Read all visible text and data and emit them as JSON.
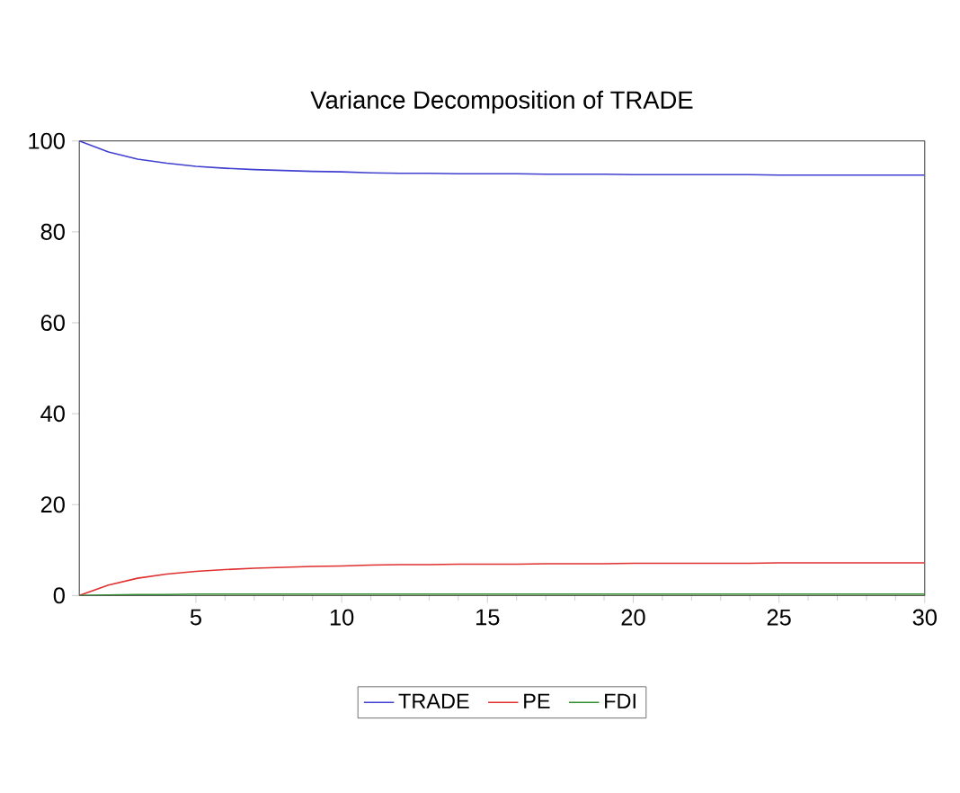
{
  "chart_data": {
    "type": "line",
    "title": "Variance Decomposition of TRADE",
    "x": [
      1,
      2,
      3,
      4,
      5,
      6,
      7,
      8,
      9,
      10,
      11,
      12,
      13,
      14,
      15,
      16,
      17,
      18,
      19,
      20,
      21,
      22,
      23,
      24,
      25,
      26,
      27,
      28,
      29,
      30
    ],
    "series": [
      {
        "name": "TRADE",
        "color": "#4040d0",
        "values": [
          100,
          97.6,
          96.0,
          95.1,
          94.4,
          94.0,
          93.7,
          93.5,
          93.3,
          93.2,
          93.0,
          92.9,
          92.9,
          92.8,
          92.8,
          92.8,
          92.7,
          92.7,
          92.7,
          92.6,
          92.6,
          92.6,
          92.6,
          92.6,
          92.5,
          92.5,
          92.5,
          92.5,
          92.5,
          92.5
        ]
      },
      {
        "name": "PE",
        "color": "#e03030",
        "values": [
          0,
          2.3,
          3.8,
          4.7,
          5.3,
          5.7,
          6.0,
          6.2,
          6.4,
          6.5,
          6.7,
          6.8,
          6.8,
          6.9,
          6.9,
          6.9,
          7.0,
          7.0,
          7.0,
          7.1,
          7.1,
          7.1,
          7.1,
          7.1,
          7.2,
          7.2,
          7.2,
          7.2,
          7.2,
          7.2
        ]
      },
      {
        "name": "FDI",
        "color": "#309030",
        "values": [
          0,
          0.1,
          0.2,
          0.2,
          0.3,
          0.3,
          0.3,
          0.3,
          0.3,
          0.3,
          0.3,
          0.3,
          0.3,
          0.3,
          0.3,
          0.3,
          0.3,
          0.3,
          0.3,
          0.3,
          0.3,
          0.3,
          0.3,
          0.3,
          0.3,
          0.3,
          0.3,
          0.3,
          0.3,
          0.3
        ]
      }
    ],
    "xlim": [
      1,
      30
    ],
    "xticks": [
      5,
      10,
      15,
      20,
      25,
      30
    ],
    "ylim": [
      0,
      100
    ],
    "yticks": [
      0,
      20,
      40,
      60,
      80,
      100
    ],
    "grid": false,
    "legend": "bottom",
    "marker": "none",
    "line_style": "solid"
  }
}
